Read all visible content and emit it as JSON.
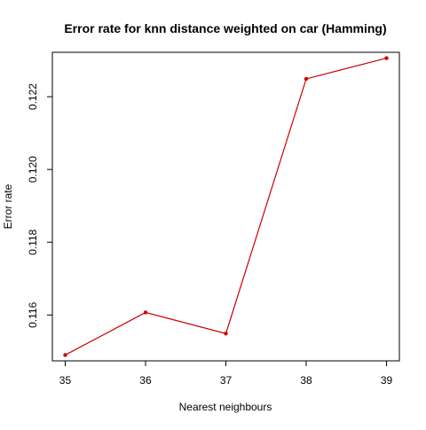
{
  "chart_data": {
    "type": "line",
    "title": "Error rate for knn distance weighted on car (Hamming)",
    "xlabel": "Nearest neighbours",
    "ylabel": "Error rate",
    "x": [
      35,
      36,
      37,
      38,
      39
    ],
    "series": [
      {
        "values": [
          0.1149,
          0.11607,
          0.11549,
          0.12249,
          0.12306
        ],
        "color": "#cc0000"
      }
    ],
    "xticks": [
      "35",
      "36",
      "37",
      "38",
      "39"
    ],
    "yticks": [
      "0.116",
      "0.118",
      "0.120",
      "0.122"
    ],
    "xlim": [
      34.84,
      39.16
    ],
    "ylim": [
      0.11474,
      0.12322
    ],
    "grid": false,
    "legend": "none"
  }
}
